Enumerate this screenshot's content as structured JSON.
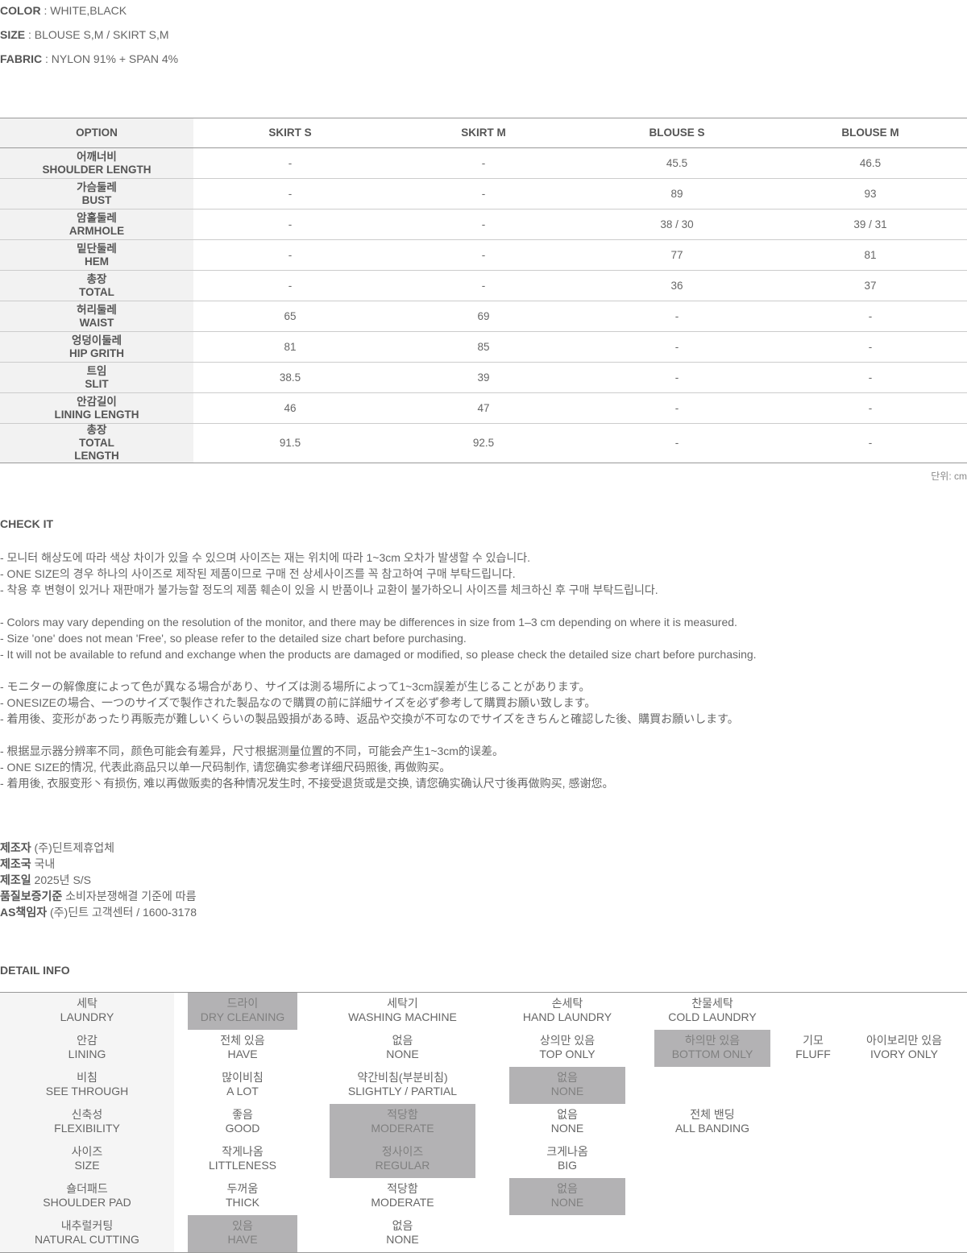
{
  "specs": [
    {
      "label": "COLOR",
      "value": " : WHITE,BLACK"
    },
    {
      "label": "SIZE",
      "value": " : BLOUSE S,M / SKIRT S,M"
    },
    {
      "label": "FABRIC",
      "value": " : NYLON 91% + SPAN 4%"
    }
  ],
  "size_table": {
    "headers": [
      "OPTION",
      "SKIRT S",
      "SKIRT M",
      "BLOUSE S",
      "BLOUSE M"
    ],
    "rows": [
      {
        "ko": "어깨너비",
        "en": "SHOULDER LENGTH",
        "values": [
          "-",
          "-",
          "45.5",
          "46.5"
        ]
      },
      {
        "ko": "가슴둘레",
        "en": "BUST",
        "values": [
          "-",
          "-",
          "89",
          "93"
        ]
      },
      {
        "ko": "암홀둘레",
        "en": "ARMHOLE",
        "values": [
          "-",
          "-",
          "38 / 30",
          "39 / 31"
        ]
      },
      {
        "ko": "밑단둘레",
        "en": "HEM",
        "values": [
          "-",
          "-",
          "77",
          "81"
        ]
      },
      {
        "ko": "총장",
        "en": "TOTAL",
        "values": [
          "-",
          "-",
          "36",
          "37"
        ]
      },
      {
        "ko": "허리둘레",
        "en": "WAIST",
        "values": [
          "65",
          "69",
          "-",
          "-"
        ]
      },
      {
        "ko": "엉덩이둘레",
        "en": "HIP GRITH",
        "values": [
          "81",
          "85",
          "-",
          "-"
        ]
      },
      {
        "ko": "트임",
        "en": "SLIT",
        "values": [
          "38.5",
          "39",
          "-",
          "-"
        ]
      },
      {
        "ko": "안감길이",
        "en": "LINING LENGTH",
        "values": [
          "46",
          "47",
          "-",
          "-"
        ]
      },
      {
        "ko": "총장",
        "en": "TOTAL\nLENGTH",
        "values": [
          "91.5",
          "92.5",
          "-",
          "-"
        ]
      }
    ],
    "unit": "단위: cm"
  },
  "check": {
    "title": "CHECK IT",
    "lines": [
      "- 모니터 해상도에 따라 색상 차이가 있을 수 있으며 사이즈는 재는 위치에 따라 1~3cm 오차가 발생할 수 있습니다.",
      "- ONE SIZE의 경우 하나의 사이즈로 제작된 제품이므로 구매 전 상세사이즈를 꼭 참고하여 구매 부탁드립니다.",
      "- 착용 후 변형이 있거나 재판매가 불가능할 정도의 제품 훼손이 있을 시 반품이나 교환이 불가하오니 사이즈를 체크하신 후 구매 부탁드립니다.",
      "",
      "- Colors may vary depending on the resolution of the monitor, and there may be differences in size from 1–3 cm depending on where it is measured.",
      "- Size 'one' does not mean 'Free', so please refer to the detailed size chart before purchasing.",
      "- It will not be available to refund and exchange when the products are damaged or modified, so please check the detailed size chart before purchasing.",
      "",
      "- モニターの解像度によって色が異なる場合があり、サイズは測る場所によって1~3cm誤差が生じることがあります。",
      "- ONESIZEの場合、一つのサイズで製作された製品なので購買の前に詳細サイズを必ず参考して購買お願い致します。",
      "- 着用後、変形があったり再販売が難しいくらいの製品毀損がある時、返品や交換が不可なのでサイズをきちんと確認した後、購買お願いします。",
      "",
      "- 根据显示器分辨率不同，颜色可能会有差异，尺寸根据测量位置的不同，可能会产生1~3cm的误差。",
      "- ONE SIZE的情况, 代表此商品只以单一尺码制作, 请您确实参考详细尺码照後, 再做购买。",
      "- 着用後, 衣服变形丶有损伤, 难以再做贩卖的各种情况发生时, 不接受退货或是交换, 请您确实确认尺寸後再做购买, 感谢您。"
    ]
  },
  "maker": [
    {
      "label": "제조자",
      "value": " (주)딘트제휴업체"
    },
    {
      "label": "제조국",
      "value": " 국내"
    },
    {
      "label": "제조일",
      "value": " 2025년 S/S"
    },
    {
      "label": "품질보증기준",
      "value": " 소비자분쟁해결 기준에 따름"
    },
    {
      "label": "AS책임자",
      "value": " (주)딘트 고객센터 / 1600-3178"
    }
  ],
  "detail": {
    "title": "DETAIL INFO",
    "selected_color": "#b3b2b4",
    "rows": [
      {
        "ko": "세탁",
        "en": "LAUNDRY",
        "cells": [
          {
            "col": 1,
            "ko": "드라이",
            "en": "DRY CLEANING",
            "selected": true
          },
          {
            "col": 2,
            "ko": "세탁기",
            "en": "WASHING MACHINE"
          },
          {
            "col": 3,
            "ko": "손세탁",
            "en": "HAND LAUNDRY"
          },
          {
            "col": 4,
            "ko": "찬물세탁",
            "en": "COLD LAUNDRY"
          }
        ]
      },
      {
        "ko": "안감",
        "en": "LINING",
        "cells": [
          {
            "col": 1,
            "ko": "전체 있음",
            "en": "HAVE"
          },
          {
            "col": 2,
            "ko": "없음",
            "en": "NONE"
          },
          {
            "col": 3,
            "ko": "상의만 있음",
            "en": "TOP ONLY"
          },
          {
            "col": 4,
            "ko": "하의만 있음",
            "en": "BOTTOM ONLY",
            "selected": true
          },
          {
            "col": 5,
            "ko": "기모",
            "en": "FLUFF"
          },
          {
            "col": 6,
            "ko": "아이보리만 있음",
            "en": "IVORY ONLY"
          }
        ]
      },
      {
        "ko": "비침",
        "en": "SEE THROUGH",
        "cells": [
          {
            "col": 1,
            "ko": "많이비침",
            "en": "A LOT"
          },
          {
            "col": 2,
            "ko": "약간비침(부분비침)",
            "en": "SLIGHTLY / PARTIAL"
          },
          {
            "col": 3,
            "ko": "없음",
            "en": "NONE",
            "selected": true
          }
        ]
      },
      {
        "ko": "신축성",
        "en": "FLEXIBILITY",
        "cells": [
          {
            "col": 1,
            "ko": "좋음",
            "en": "GOOD"
          },
          {
            "col": 2,
            "ko": "적당함",
            "en": "MODERATE",
            "selected": true
          },
          {
            "col": 3,
            "ko": "없음",
            "en": "NONE"
          },
          {
            "col": 4,
            "ko": "전체 밴딩",
            "en": "ALL BANDING"
          }
        ]
      },
      {
        "ko": "사이즈",
        "en": "SIZE",
        "cells": [
          {
            "col": 1,
            "ko": "작게나옴",
            "en": "LITTLENESS"
          },
          {
            "col": 2,
            "ko": "정사이즈",
            "en": "REGULAR",
            "selected": true
          },
          {
            "col": 3,
            "ko": "크게나옴",
            "en": "BIG"
          }
        ]
      },
      {
        "ko": "숄더패드",
        "en": "SHOULDER PAD",
        "cells": [
          {
            "col": 1,
            "ko": "두꺼움",
            "en": "THICK"
          },
          {
            "col": 2,
            "ko": "적당함",
            "en": "MODERATE"
          },
          {
            "col": 3,
            "ko": "없음",
            "en": "NONE",
            "selected": true
          }
        ]
      },
      {
        "ko": "내추럴커팅",
        "en": "NATURAL CUTTING",
        "cells": [
          {
            "col": 1,
            "ko": "있음",
            "en": "HAVE",
            "selected": true
          },
          {
            "col": 2,
            "ko": "없음",
            "en": "NONE"
          }
        ]
      }
    ]
  }
}
